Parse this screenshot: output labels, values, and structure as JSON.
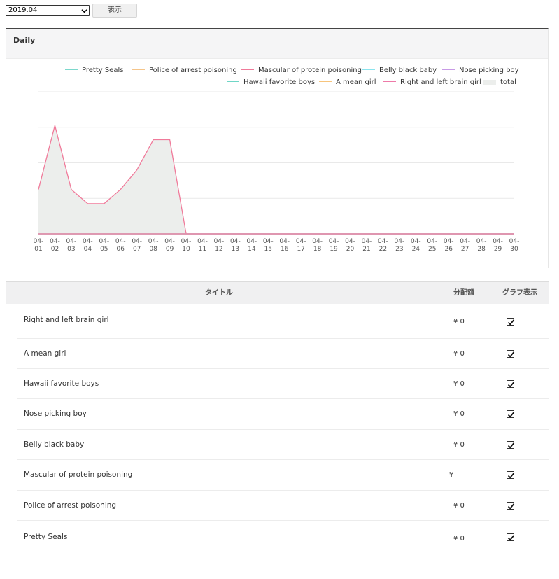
{
  "controls": {
    "month_value": "2019.04",
    "show_label": "表示"
  },
  "panel": {
    "title": "Daily"
  },
  "colors": {
    "Pretty Seals": "#7cd8cc",
    "Police of arrest poisoning": "#f5c58a",
    "Mascular of protein poisoning": "#f07a9a",
    "Belly black baby": "#8be4ee",
    "Nose picking boy": "#c89ae6",
    "Hawaii favorite boys": "#6fd6c6",
    "A mean girl": "#f7c47c",
    "Right and left brain girl": "#ee7aa8",
    "total": "#eceeec"
  },
  "chart_data": {
    "type": "area",
    "title": "Daily",
    "x_ticks": [
      "04-01",
      "04-02",
      "04-03",
      "04-04",
      "04-05",
      "04-06",
      "04-07",
      "04-08",
      "04-09",
      "04-10",
      "04-11",
      "04-12",
      "04-13",
      "04-14",
      "04-15",
      "04-16",
      "04-17",
      "04-18",
      "04-19",
      "04-20",
      "04-21",
      "04-22",
      "04-23",
      "04-24",
      "04-25",
      "04-26",
      "04-27",
      "04-28",
      "04-29",
      "04-30"
    ],
    "legend": [
      "Pretty Seals",
      "Police of arrest poisoning",
      "Mascular of protein poisoning",
      "Belly black baby",
      "Nose picking boy",
      "Hawaii favorite boys",
      "A mean girl",
      "Right and left brain girl",
      "total"
    ],
    "legend_position": "top-right",
    "grid": true,
    "ylim": [
      0,
      4
    ],
    "series": [
      {
        "name": "Pretty Seals",
        "values": [
          0,
          0,
          0,
          0,
          0,
          0,
          0,
          0,
          0,
          0,
          0,
          0,
          0,
          0,
          0,
          0,
          0,
          0,
          0,
          0,
          0,
          0,
          0,
          0,
          0,
          0,
          0,
          0,
          0,
          0
        ]
      },
      {
        "name": "Police of arrest poisoning",
        "values": [
          0,
          0,
          0,
          0,
          0,
          0,
          0,
          0,
          0,
          0,
          0,
          0,
          0,
          0,
          0,
          0,
          0,
          0,
          0,
          0,
          0,
          0,
          0,
          0,
          0,
          0,
          0,
          0,
          0,
          0
        ]
      },
      {
        "name": "Mascular of protein poisoning",
        "values": [
          1.25,
          3.05,
          1.25,
          0.85,
          0.85,
          1.25,
          1.8,
          2.65,
          2.65,
          0,
          0,
          0,
          0,
          0,
          0,
          0,
          0,
          0,
          0,
          0,
          0,
          0,
          0,
          0,
          0,
          0,
          0,
          0,
          0,
          0
        ]
      },
      {
        "name": "Belly black baby",
        "values": [
          0,
          0,
          0,
          0,
          0,
          0,
          0,
          0,
          0,
          0,
          0,
          0,
          0,
          0,
          0,
          0,
          0,
          0,
          0,
          0,
          0,
          0,
          0,
          0,
          0,
          0,
          0,
          0,
          0,
          0
        ]
      },
      {
        "name": "Nose picking boy",
        "values": [
          0,
          0,
          0,
          0,
          0,
          0,
          0,
          0,
          0,
          0,
          0,
          0,
          0,
          0,
          0,
          0,
          0,
          0,
          0,
          0,
          0,
          0,
          0,
          0,
          0,
          0,
          0,
          0,
          0,
          0
        ]
      },
      {
        "name": "Hawaii favorite boys",
        "values": [
          0,
          0,
          0,
          0,
          0,
          0,
          0,
          0,
          0,
          0,
          0,
          0,
          0,
          0,
          0,
          0,
          0,
          0,
          0,
          0,
          0,
          0,
          0,
          0,
          0,
          0,
          0,
          0,
          0,
          0
        ]
      },
      {
        "name": "A mean girl",
        "values": [
          0,
          0,
          0,
          0,
          0,
          0,
          0,
          0,
          0,
          0,
          0,
          0,
          0,
          0,
          0,
          0,
          0,
          0,
          0,
          0,
          0,
          0,
          0,
          0,
          0,
          0,
          0,
          0,
          0,
          0
        ]
      },
      {
        "name": "Right and left brain girl",
        "values": [
          0,
          0,
          0,
          0,
          0,
          0,
          0,
          0,
          0,
          0,
          0,
          0,
          0,
          0,
          0,
          0,
          0,
          0,
          0,
          0,
          0,
          0,
          0,
          0,
          0,
          0,
          0,
          0,
          0,
          0
        ]
      },
      {
        "name": "total",
        "values": [
          1.25,
          3.05,
          1.25,
          0.85,
          0.85,
          1.25,
          1.8,
          2.65,
          2.65,
          0,
          0,
          0,
          0,
          0,
          0,
          0,
          0,
          0,
          0,
          0,
          0,
          0,
          0,
          0,
          0,
          0,
          0,
          0,
          0,
          0
        ]
      }
    ]
  },
  "table": {
    "headers": {
      "title": "タイトル",
      "amount": "分配額",
      "graph": "グラフ表示"
    },
    "rows": [
      {
        "title": "Right and left brain girl",
        "amount": "¥ 0",
        "checked": true
      },
      {
        "title": "A mean girl",
        "amount": "¥ 0",
        "checked": true
      },
      {
        "title": "Hawaii favorite boys",
        "amount": "¥ 0",
        "checked": true
      },
      {
        "title": "Nose picking boy",
        "amount": "¥ 0",
        "checked": true
      },
      {
        "title": "Belly black baby",
        "amount": "¥ 0",
        "checked": true
      },
      {
        "title": "Mascular of protein poisoning",
        "amount": "¥",
        "checked": true
      },
      {
        "title": "Police of arrest poisoning",
        "amount": "¥ 0",
        "checked": true
      },
      {
        "title": "Pretty Seals",
        "amount": "¥ 0",
        "checked": true
      }
    ]
  }
}
